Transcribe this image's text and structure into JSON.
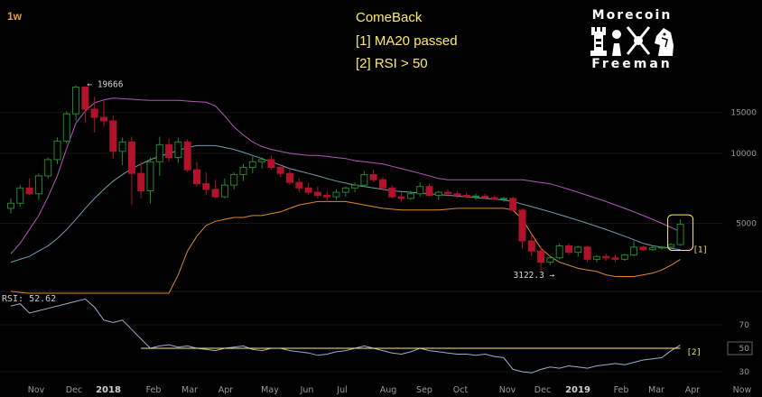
{
  "timeframe": "1w",
  "annotation": {
    "title": "ComeBack",
    "item1": "[1] MA20 passed",
    "item2": "[2] RSI > 50"
  },
  "logo": {
    "top": "Morecoin",
    "bottom": "Freeman"
  },
  "markers": {
    "m1": "[1]",
    "m2": "[2]"
  },
  "rsi_label": "RSI: 52.62",
  "colors": {
    "bull": "#1f8a2e",
    "bear": "#b0132a",
    "upper_band": "#b05ab8",
    "middle_band": "#6ea0b0",
    "lower_band": "#e08a2a",
    "rsi": "#9ab0d0",
    "rsi_level": "#ffee66"
  },
  "chart_data": {
    "type": "candlestick",
    "price_axis": {
      "ticks": [
        5000,
        10000,
        15000
      ],
      "log_scale": true
    },
    "rsi_axis": {
      "ticks": [
        30,
        50,
        70
      ],
      "current_level": 50
    },
    "x_axis_labels": [
      "Nov",
      "Dec",
      "2018",
      "Feb",
      "Mar",
      "Apr",
      "May",
      "Jun",
      "Jul",
      "Aug",
      "Sep",
      "Oct",
      "Nov",
      "Dec",
      "2019",
      "Feb",
      "Mar",
      "Apr",
      "Now"
    ],
    "high_annotation": {
      "text": "← 19666",
      "value": 19666
    },
    "low_annotation": {
      "text": "3122.3 →",
      "value": 3122.3
    },
    "candles": [
      [
        5800,
        6400,
        5500,
        6100
      ],
      [
        6100,
        7300,
        5900,
        7100
      ],
      [
        7100,
        7800,
        6600,
        6700
      ],
      [
        6700,
        8200,
        6300,
        8000
      ],
      [
        8000,
        9600,
        7800,
        9400
      ],
      [
        9400,
        11700,
        9000,
        11300
      ],
      [
        11300,
        15200,
        11000,
        14800
      ],
      [
        14800,
        19666,
        13800,
        19300
      ],
      [
        19300,
        19500,
        13500,
        15500
      ],
      [
        15500,
        17500,
        12300,
        14300
      ],
      [
        14300,
        16800,
        13000,
        13800
      ],
      [
        13800,
        14500,
        9500,
        10200
      ],
      [
        10200,
        11700,
        8900,
        11200
      ],
      [
        11200,
        11800,
        6000,
        8200
      ],
      [
        8200,
        9200,
        6400,
        6900
      ],
      [
        6900,
        9600,
        6100,
        9200
      ],
      [
        9200,
        11800,
        8000,
        10900
      ],
      [
        10900,
        11600,
        9200,
        9600
      ],
      [
        9600,
        11700,
        9100,
        11200
      ],
      [
        11200,
        11500,
        8300,
        8500
      ],
      [
        8500,
        9200,
        7200,
        7400
      ],
      [
        7400,
        8300,
        6600,
        7000
      ],
      [
        7000,
        7700,
        6400,
        6500
      ],
      [
        6500,
        7800,
        6400,
        7300
      ],
      [
        7300,
        8300,
        7000,
        8100
      ],
      [
        8100,
        9000,
        7600,
        8700
      ],
      [
        8700,
        9700,
        8200,
        9200
      ],
      [
        9200,
        9600,
        8600,
        9400
      ],
      [
        9400,
        9800,
        8500,
        8700
      ],
      [
        8700,
        9000,
        7900,
        8200
      ],
      [
        8200,
        8600,
        7300,
        7500
      ],
      [
        7500,
        7800,
        6800,
        7100
      ],
      [
        7100,
        7500,
        6600,
        6800
      ],
      [
        6800,
        7200,
        6400,
        6600
      ],
      [
        6600,
        6900,
        6200,
        6500
      ],
      [
        6500,
        7000,
        6300,
        6800
      ],
      [
        6800,
        7200,
        6500,
        7100
      ],
      [
        7100,
        7500,
        6800,
        7300
      ],
      [
        7300,
        8400,
        7200,
        8100
      ],
      [
        8100,
        8500,
        7500,
        7700
      ],
      [
        7700,
        7900,
        6900,
        7100
      ],
      [
        7100,
        7300,
        6400,
        6500
      ],
      [
        6500,
        6800,
        6200,
        6400
      ],
      [
        6400,
        6900,
        6300,
        6700
      ],
      [
        6700,
        7500,
        6500,
        7200
      ],
      [
        7200,
        7400,
        6500,
        6600
      ],
      [
        6600,
        6900,
        6300,
        6800
      ],
      [
        6800,
        7000,
        6500,
        6700
      ],
      [
        6700,
        6900,
        6400,
        6600
      ],
      [
        6600,
        6800,
        6400,
        6500
      ],
      [
        6500,
        6700,
        6300,
        6550
      ],
      [
        6550,
        6700,
        6350,
        6450
      ],
      [
        6450,
        6600,
        6300,
        6350
      ],
      [
        6350,
        6500,
        6200,
        6400
      ],
      [
        6400,
        6500,
        5600,
        5700
      ],
      [
        5700,
        5800,
        3900,
        4200
      ],
      [
        4200,
        4500,
        3600,
        3800
      ],
      [
        3800,
        4000,
        3122.3,
        3400
      ],
      [
        3400,
        3600,
        3300,
        3550
      ],
      [
        3550,
        4100,
        3500,
        4000
      ],
      [
        4000,
        4100,
        3650,
        3750
      ],
      [
        3750,
        4000,
        3600,
        3950
      ],
      [
        3950,
        4000,
        3400,
        3500
      ],
      [
        3500,
        3650,
        3400,
        3600
      ],
      [
        3600,
        3700,
        3450,
        3550
      ],
      [
        3550,
        3650,
        3400,
        3500
      ],
      [
        3500,
        3700,
        3450,
        3650
      ],
      [
        3650,
        4200,
        3600,
        3950
      ],
      [
        3950,
        4000,
        3800,
        3850
      ],
      [
        3850,
        4000,
        3800,
        3920
      ],
      [
        3920,
        4000,
        3850,
        3950
      ],
      [
        3950,
        4100,
        3900,
        4050
      ],
      [
        4050,
        5200,
        4000,
        4950
      ]
    ],
    "upper_band": [
      3700,
      4100,
      4700,
      5400,
      6500,
      8000,
      10500,
      13500,
      15200,
      16500,
      17000,
      17300,
      17200,
      17100,
      17000,
      16900,
      16900,
      16900,
      16900,
      16800,
      16700,
      16600,
      16000,
      14500,
      13000,
      12000,
      11200,
      10700,
      10400,
      10200,
      10000,
      9900,
      9800,
      9800,
      9700,
      9600,
      9500,
      9300,
      9200,
      9100,
      9000,
      8800,
      8600,
      8400,
      8200,
      8000,
      7800,
      7700,
      7700,
      7700,
      7700,
      7700,
      7700,
      7700,
      7700,
      7700,
      7600,
      7500,
      7400,
      7200,
      7000,
      6800,
      6600,
      6400,
      6200,
      6000,
      5800,
      5600,
      5400,
      5200,
      5000,
      4800,
      4600
    ],
    "middle_band": [
      3400,
      3500,
      3600,
      3800,
      4000,
      4300,
      4700,
      5200,
      5800,
      6400,
      7000,
      7600,
      8100,
      8600,
      9000,
      9400,
      9700,
      10000,
      10300,
      10600,
      10800,
      10800,
      10800,
      10600,
      10400,
      10100,
      9800,
      9500,
      9200,
      8900,
      8600,
      8400,
      8200,
      8000,
      7800,
      7600,
      7450,
      7300,
      7200,
      7100,
      7000,
      6900,
      6850,
      6800,
      6750,
      6700,
      6650,
      6600,
      6550,
      6500,
      6450,
      6400,
      6350,
      6300,
      6200,
      6050,
      5900,
      5750,
      5600,
      5450,
      5300,
      5150,
      5000,
      4850,
      4700,
      4550,
      4400,
      4250,
      4100,
      4000,
      3950,
      3900,
      3850
    ],
    "lower_band": [
      2550,
      2520,
      2500,
      2500,
      2500,
      2500,
      2500,
      2500,
      2500,
      2500,
      2500,
      2500,
      2500,
      2500,
      2500,
      2500,
      2500,
      2500,
      3000,
      3800,
      4400,
      4900,
      5100,
      5200,
      5300,
      5300,
      5400,
      5400,
      5500,
      5600,
      5800,
      6000,
      6100,
      6200,
      6200,
      6200,
      6200,
      6100,
      6000,
      5900,
      5800,
      5750,
      5700,
      5700,
      5700,
      5700,
      5700,
      5750,
      5800,
      5800,
      5800,
      5800,
      5800,
      5800,
      5700,
      5200,
      4500,
      3900,
      3600,
      3400,
      3300,
      3200,
      3150,
      3100,
      3000,
      2950,
      2950,
      2950,
      3000,
      3050,
      3150,
      3300,
      3500
    ],
    "rsi": [
      86,
      88,
      80,
      82,
      84,
      86,
      88,
      90,
      92,
      85,
      74,
      72,
      74,
      66,
      58,
      50,
      52,
      53,
      51,
      52,
      50,
      49,
      48,
      50,
      51,
      52,
      49,
      48,
      50,
      50,
      48,
      47,
      46,
      44,
      45,
      47,
      48,
      50,
      52,
      50,
      48,
      46,
      45,
      47,
      50,
      48,
      47,
      46,
      45,
      45,
      44,
      45,
      43,
      42,
      32,
      30,
      29,
      32,
      34,
      33,
      35,
      34,
      33,
      35,
      36,
      37,
      36,
      38,
      40,
      41,
      42,
      48,
      52.62
    ]
  }
}
